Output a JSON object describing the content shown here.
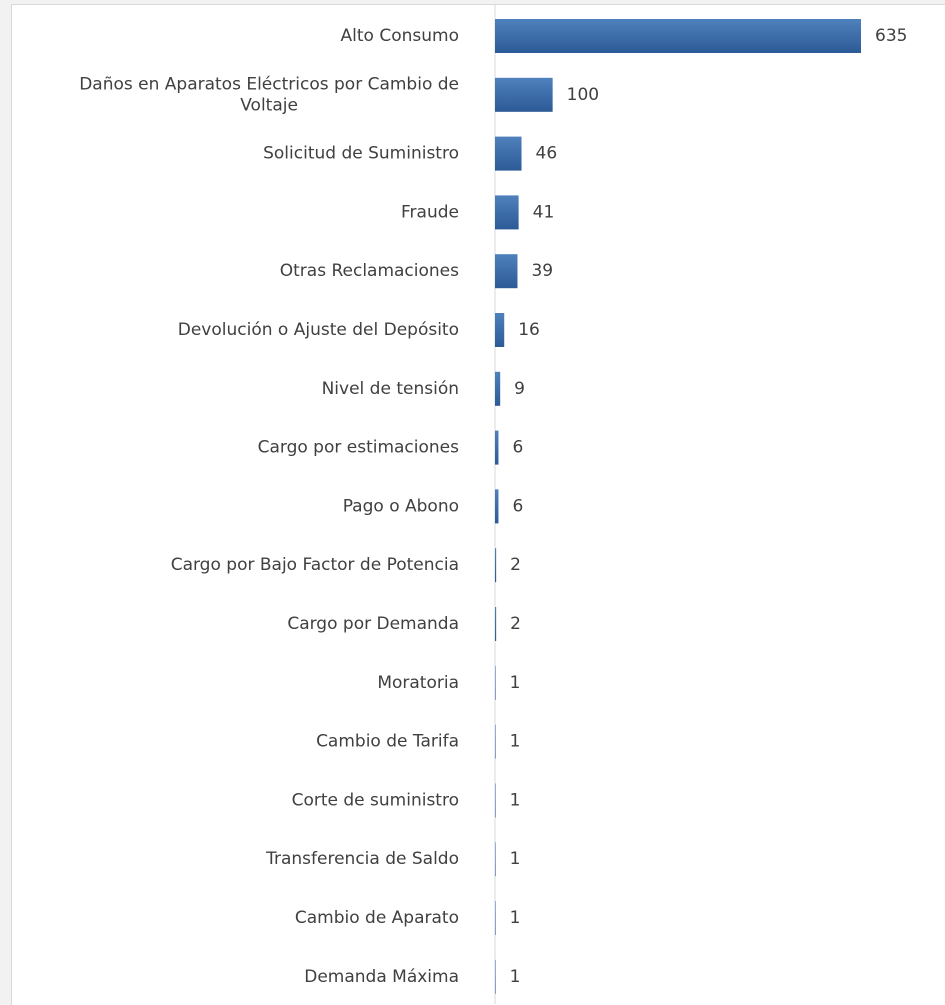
{
  "chart_data": {
    "type": "bar",
    "orientation": "horizontal",
    "categories": [
      "Alto Consumo",
      "Daños en Aparatos Eléctricos por Cambio de Voltaje",
      "Solicitud de Suministro",
      "Fraude",
      "Otras Reclamaciones",
      "Devolución o Ajuste del Depósito",
      "Nivel de tensión",
      "Cargo por estimaciones",
      "Pago o Abono",
      "Cargo por Bajo Factor de Potencia",
      "Cargo por Demanda",
      "Moratoria",
      "Cambio de Tarifa",
      "Corte de suministro",
      "Transferencia de Saldo",
      "Cambio de Aparato",
      "Demanda Máxima"
    ],
    "values": [
      635,
      100,
      46,
      41,
      39,
      16,
      9,
      6,
      6,
      2,
      2,
      1,
      1,
      1,
      1,
      1,
      1
    ],
    "data_labels": true,
    "grid": false,
    "legend": "none",
    "colors": {
      "bar_top": "#4f81bd",
      "bar_bottom": "#2c5a96",
      "axis": "#d9d9d9",
      "text": "#404040"
    }
  }
}
